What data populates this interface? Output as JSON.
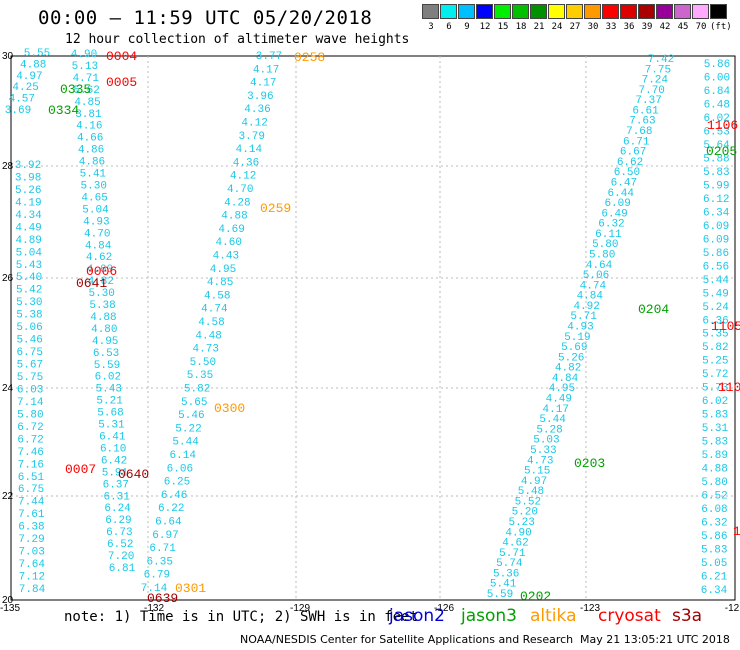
{
  "header": {
    "title": "00:00 — 11:59 UTC 05/20/2018",
    "subtitle": "12 hour collection of altimeter wave heights"
  },
  "color_scale": {
    "unit_label": "(ft)",
    "bins": [
      {
        "label": "3",
        "color": "#7f7f7f"
      },
      {
        "label": "6",
        "color": "#00eeee"
      },
      {
        "label": "9",
        "color": "#00bfff"
      },
      {
        "label": "12",
        "color": "#0000ff"
      },
      {
        "label": "15",
        "color": "#00ee00"
      },
      {
        "label": "18",
        "color": "#00c000"
      },
      {
        "label": "21",
        "color": "#009000"
      },
      {
        "label": "24",
        "color": "#ffff00"
      },
      {
        "label": "27",
        "color": "#ffcc00"
      },
      {
        "label": "30",
        "color": "#ff9900"
      },
      {
        "label": "33",
        "color": "#ff0000"
      },
      {
        "label": "36",
        "color": "#dd0000"
      },
      {
        "label": "39",
        "color": "#aa0000"
      },
      {
        "label": "42",
        "color": "#990099"
      },
      {
        "label": "45",
        "color": "#cc66cc"
      },
      {
        "label": "70",
        "color": "#ffaaff"
      },
      {
        "label": "(ft)",
        "color": "#000000"
      }
    ]
  },
  "map": {
    "lon_ticks": [
      "-135",
      "-132",
      "-129",
      "-126",
      "-123",
      "-12"
    ],
    "lat_ticks": [
      "30",
      "28",
      "26",
      "24",
      "22",
      "20"
    ]
  },
  "satellites": [
    {
      "name": "jason2",
      "color": "#0000dd"
    },
    {
      "name": "jason3",
      "color": "#00a000"
    },
    {
      "name": "altika",
      "color": "#ff9900"
    },
    {
      "name": "cryosat",
      "color": "#ff0000"
    },
    {
      "name": "s3a",
      "color": "#a00000"
    }
  ],
  "footer": {
    "note": "note: 1) Time is in UTC; 2) SWH is in feet",
    "credit": "NOAA/NESDIS Center for Satellite Applications and Research",
    "timestamp": "May 21 13:05:21 UTC 2018"
  },
  "tracks": [
    {
      "id": "A",
      "values": [
        "5.55",
        "4.88",
        "4.97",
        "4.25",
        "4.57",
        "3.69"
      ]
    },
    {
      "id": "B",
      "values": [
        "4.90",
        "5.13",
        "4.71",
        "5.62",
        "4.85",
        "3.81",
        "4.16",
        "4.66",
        "4.86",
        "4.86",
        "5.41",
        "5.30",
        "4.65",
        "5.04",
        "4.93",
        "4.70",
        "4.84",
        "4.62",
        "4.60",
        "4.82",
        "5.30",
        "5.38",
        "4.88",
        "4.80",
        "4.95",
        "6.53",
        "5.59",
        "6.02",
        "5.43",
        "5.21",
        "5.68",
        "5.31",
        "6.41",
        "6.10",
        "6.42",
        "5.91",
        "6.37",
        "6.31",
        "6.24",
        "6.29",
        "6.73",
        "6.52",
        "7.20",
        "6.81"
      ]
    },
    {
      "id": "C",
      "values": [
        "3.92",
        "3.98",
        "5.26",
        "4.19",
        "4.34",
        "4.49",
        "4.89",
        "5.04",
        "5.43",
        "5.40",
        "5.42",
        "5.30",
        "5.38",
        "5.06",
        "5.46",
        "6.75",
        "5.67",
        "5.75",
        "6.03",
        "7.14",
        "5.80",
        "6.72",
        "6.72",
        "7.46",
        "7.16",
        "6.51",
        "6.75",
        "7.44",
        "7.61",
        "6.38",
        "7.29",
        "7.03",
        "7.64",
        "7.12",
        "7.84"
      ]
    },
    {
      "id": "D",
      "values": [
        "3.77",
        "4.17",
        "4.17",
        "3.96",
        "4.36",
        "4.12",
        "3.79",
        "4.14",
        "4.36",
        "4.12",
        "4.70",
        "4.28",
        "4.88",
        "4.69",
        "4.60",
        "4.43",
        "4.95",
        "4.85",
        "4.58",
        "4.74",
        "4.58",
        "4.48",
        "4.73",
        "5.50",
        "5.35",
        "5.82",
        "5.65",
        "5.46",
        "5.22",
        "5.44",
        "6.14",
        "6.06",
        "6.25",
        "6.46",
        "6.22",
        "6.64",
        "6.97",
        "6.71",
        "6.35",
        "6.79",
        "7.14"
      ]
    },
    {
      "id": "E",
      "values": [
        "7.42",
        "7.75",
        "7.24",
        "7.70",
        "7.37",
        "6.61",
        "7.63",
        "7.68",
        "6.71",
        "6.67",
        "6.62",
        "6.50",
        "6.47",
        "6.44",
        "6.09",
        "6.49",
        "6.32",
        "6.11",
        "5.80",
        "5.80",
        "4.64",
        "5.06",
        "4.74",
        "4.84",
        "4.92",
        "5.71",
        "4.93",
        "5.19",
        "5.69",
        "5.26",
        "4.82",
        "4.84",
        "4.95",
        "4.49",
        "4.17",
        "5.44",
        "5.28",
        "5.03",
        "5.33",
        "4.73",
        "5.15",
        "4.97",
        "5.48",
        "5.52",
        "5.20",
        "5.23",
        "4.90",
        "4.62",
        "5.71",
        "5.74",
        "5.36",
        "5.41",
        "5.59"
      ]
    },
    {
      "id": "F",
      "values": [
        "5.86",
        "6.00",
        "6.84",
        "6.48",
        "6.02",
        "6.53",
        "5.64",
        "5.88",
        "5.83",
        "5.99",
        "6.12",
        "6.34",
        "6.09",
        "6.09",
        "5.86",
        "6.56",
        "5.44",
        "5.49",
        "5.24",
        "6.36",
        "5.35",
        "5.82",
        "5.25",
        "5.72",
        "5.73",
        "6.02",
        "5.83",
        "5.31",
        "5.83",
        "5.89",
        "4.88",
        "5.80",
        "6.52",
        "6.08",
        "6.32",
        "5.86",
        "5.83",
        "5.05",
        "6.21",
        "6.34"
      ]
    }
  ],
  "time_labels": [
    {
      "text": "0004",
      "sat": "cryosat"
    },
    {
      "text": "0005",
      "sat": "cryosat"
    },
    {
      "text": "0335",
      "sat": "jason3"
    },
    {
      "text": "0334",
      "sat": "jason3"
    },
    {
      "text": "0006",
      "sat": "cryosat"
    },
    {
      "text": "0641",
      "sat": "s3a"
    },
    {
      "text": "0007",
      "sat": "cryosat"
    },
    {
      "text": "0640",
      "sat": "s3a"
    },
    {
      "text": "0639",
      "sat": "s3a"
    },
    {
      "text": "0258",
      "sat": "altika"
    },
    {
      "text": "0259",
      "sat": "altika"
    },
    {
      "text": "0300",
      "sat": "altika"
    },
    {
      "text": "0301",
      "sat": "altika"
    },
    {
      "text": "1106",
      "sat": "cryosat"
    },
    {
      "text": "0205",
      "sat": "jason3"
    },
    {
      "text": "0204",
      "sat": "jason3"
    },
    {
      "text": "1105",
      "sat": "cryosat"
    },
    {
      "text": "110",
      "sat": "cryosat"
    },
    {
      "text": "0203",
      "sat": "jason3"
    },
    {
      "text": "0202",
      "sat": "jason3"
    },
    {
      "text": "1",
      "sat": "cryosat"
    }
  ]
}
